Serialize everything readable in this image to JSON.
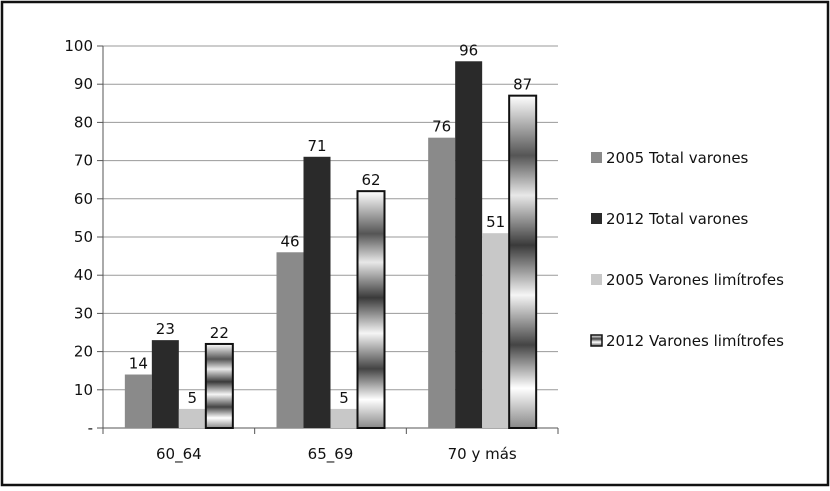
{
  "chart_data": {
    "type": "bar",
    "categories": [
      "60_64",
      "65_69",
      "70 y más"
    ],
    "series": [
      {
        "name": "2005 Total varones",
        "values": [
          14,
          46,
          76
        ],
        "color": "#8a8a8a",
        "pattern": "solid"
      },
      {
        "name": "2012 Total varones",
        "values": [
          23,
          71,
          96
        ],
        "color": "#2a2a2a",
        "pattern": "solid"
      },
      {
        "name": "2005 Varones limítrofes",
        "values": [
          5,
          5,
          51
        ],
        "color": "#c8c8c8",
        "pattern": "solid"
      },
      {
        "name": "2012 Varones limítrofes",
        "values": [
          22,
          62,
          87
        ],
        "color": "#6a6a6a",
        "pattern": "metallic-gradient"
      }
    ],
    "data_labels": [
      [
        "14",
        "46",
        "76"
      ],
      [
        "23",
        "71",
        "96"
      ],
      [
        "5",
        "5",
        "51"
      ],
      [
        "22",
        "62",
        "87"
      ]
    ],
    "ylim": [
      0,
      100
    ],
    "yticks": [
      "-",
      "10",
      "20",
      "30",
      "40",
      "50",
      "60",
      "70",
      "80",
      "90",
      "100"
    ],
    "grid": true,
    "legend_position": "right"
  }
}
